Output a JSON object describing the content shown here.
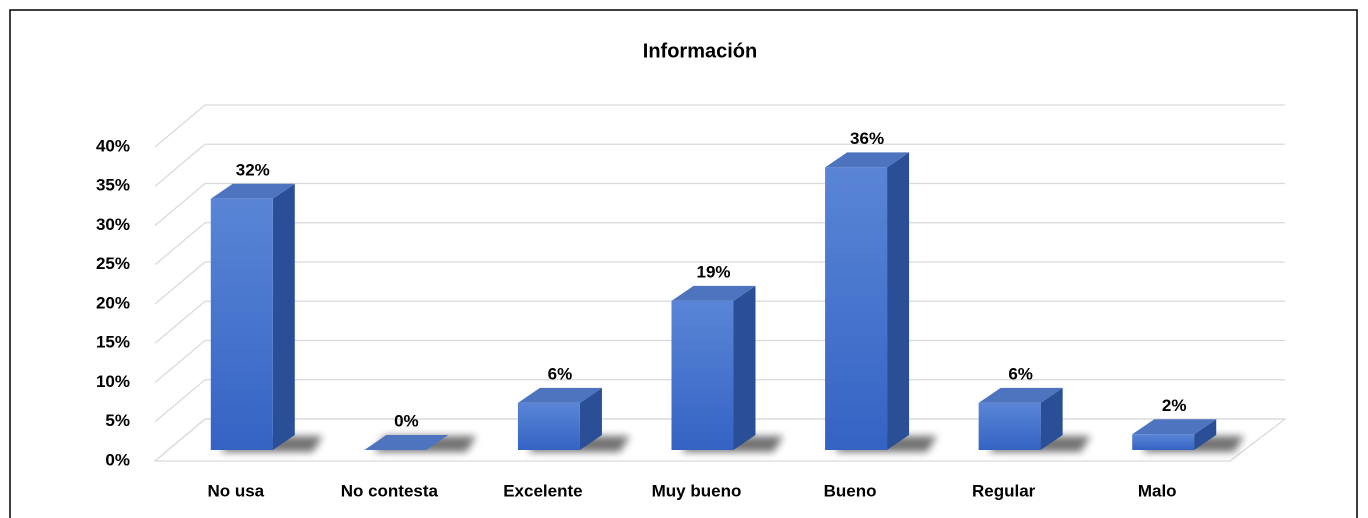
{
  "chart_data": {
    "type": "bar3d",
    "title": "Información",
    "categories": [
      "No usa",
      "No contesta",
      "Excelente",
      "Muy bueno",
      "Bueno",
      "Regular",
      "Malo"
    ],
    "values": [
      32,
      0,
      6,
      19,
      36,
      6,
      2
    ],
    "value_labels": [
      "32%",
      "0%",
      "6%",
      "19%",
      "36%",
      "6%",
      "2%"
    ],
    "color": "#4472c4",
    "ylim": [
      0,
      40
    ],
    "yticks": [
      {
        "value": 0,
        "label": "0%"
      },
      {
        "value": 5,
        "label": "5%"
      },
      {
        "value": 10,
        "label": "10%"
      },
      {
        "value": 15,
        "label": "15%"
      },
      {
        "value": 20,
        "label": "20%"
      },
      {
        "value": 25,
        "label": "25%"
      },
      {
        "value": 30,
        "label": "30%"
      },
      {
        "value": 35,
        "label": "35%"
      },
      {
        "value": 40,
        "label": "40%"
      }
    ],
    "grid": true
  }
}
